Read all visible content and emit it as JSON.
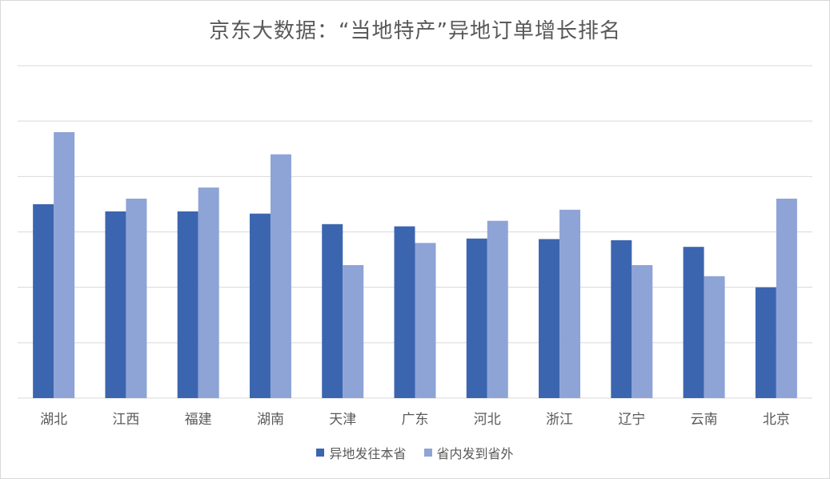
{
  "chart_data": {
    "type": "bar",
    "title": "京东大数据：“当地特产”异地订单增长排名",
    "categories": [
      "湖北",
      "江西",
      "福建",
      "湖南",
      "天津",
      "广东",
      "河北",
      "浙江",
      "辽宁",
      "云南",
      "北京"
    ],
    "series": [
      {
        "name": "异地发往本省",
        "color": "#3c65b0",
        "values": [
          3.5,
          3.37,
          3.37,
          3.33,
          3.14,
          3.1,
          2.88,
          2.87,
          2.85,
          2.73,
          2.0
        ]
      },
      {
        "name": "省内发到省外",
        "color": "#8ea4d6",
        "values": [
          4.8,
          3.6,
          3.8,
          4.4,
          2.4,
          2.8,
          3.2,
          3.4,
          2.4,
          2.2,
          3.6
        ]
      }
    ],
    "ylim": [
      0,
      6
    ],
    "grid": true,
    "legend_position": "bottom"
  }
}
